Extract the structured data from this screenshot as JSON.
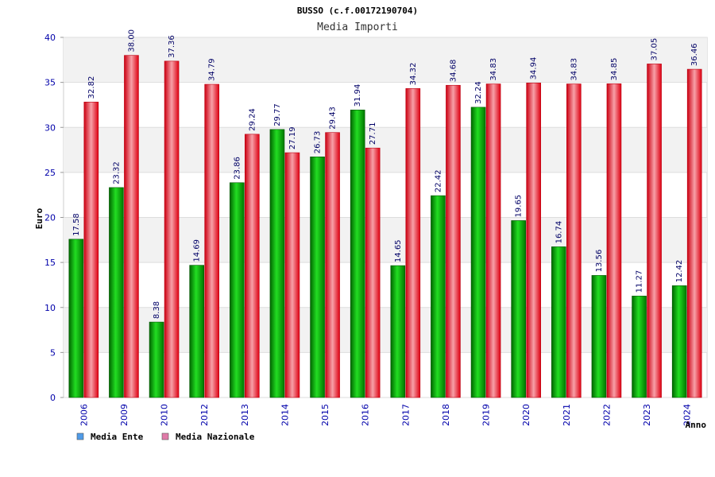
{
  "chart_data": {
    "type": "bar",
    "title": "BUSSO (c.f.00172190704)",
    "subtitle": "Media Importi",
    "xlabel": "Anno",
    "ylabel": "Euro",
    "ylim": [
      0,
      40
    ],
    "yticks": [
      0,
      5,
      10,
      15,
      20,
      25,
      30,
      35,
      40
    ],
    "grid": true,
    "legend_position": "bottom-left",
    "categories": [
      "2006",
      "2009",
      "2010",
      "2012",
      "2013",
      "2014",
      "2015",
      "2016",
      "2017",
      "2018",
      "2019",
      "2020",
      "2021",
      "2022",
      "2023",
      "2024"
    ],
    "series": [
      {
        "name": "Media Ente",
        "color": "#00aa00",
        "legend_color": "#4f9be8",
        "values": [
          17.58,
          23.32,
          8.38,
          14.69,
          23.86,
          29.77,
          26.73,
          31.94,
          14.65,
          22.42,
          32.24,
          19.65,
          16.74,
          13.56,
          11.27,
          12.42
        ],
        "labels": [
          "17.58",
          "23.32",
          "8.38",
          "14.69",
          "23.86",
          "29.77",
          "26.73",
          "31.94",
          "14.65",
          "22.42",
          "32.24",
          "19.65",
          "16.74",
          "13.56",
          "11.27",
          "12.42"
        ]
      },
      {
        "name": "Media Nazionale",
        "color": "#ee1122",
        "legend_color": "#e07aa8",
        "values": [
          32.82,
          38.0,
          37.36,
          34.79,
          29.24,
          27.19,
          29.43,
          27.71,
          34.32,
          34.68,
          34.83,
          34.94,
          34.83,
          34.85,
          37.05,
          36.46
        ],
        "labels": [
          "32.82",
          "38.00",
          "37.36",
          "34.79",
          "29.24",
          "27.19",
          "29.43",
          "27.71",
          "34.32",
          "34.68",
          "34.83",
          "34.94",
          "34.83",
          "34.85",
          "37.05",
          "36.46"
        ]
      }
    ]
  }
}
